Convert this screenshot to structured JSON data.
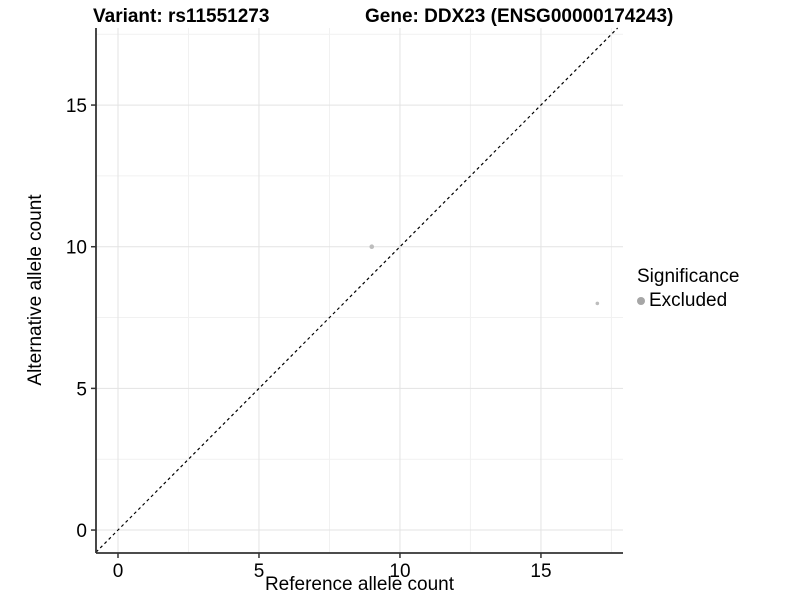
{
  "header": {
    "variant_title": "Variant: rs11551273",
    "gene_title": "Gene: DDX23 (ENSG00000174243)"
  },
  "chart_data": {
    "type": "scatter",
    "title_left": "Variant: rs11551273",
    "title_right": "Gene: DDX23 (ENSG00000174243)",
    "xlabel": "Reference allele count",
    "ylabel": "Alternative allele count",
    "xlim": [
      -0.78,
      17.91
    ],
    "ylim": [
      -0.81,
      17.72
    ],
    "x_ticks": [
      0,
      5,
      10,
      15
    ],
    "y_ticks": [
      0,
      5,
      10,
      15
    ],
    "x_minor_ticks": [
      2.5,
      7.5,
      12.5,
      17.5
    ],
    "y_minor_ticks": [
      2.5,
      7.5,
      12.5,
      17.5
    ],
    "grid": true,
    "identity_line": {
      "style": "dashed",
      "equation": "y = x",
      "color": "#000000"
    },
    "series": [
      {
        "name": "Excluded",
        "color": "#bdbdbd",
        "points": [
          {
            "x": 9,
            "y": 10,
            "r": 2.3
          },
          {
            "x": 17,
            "y": 8,
            "r": 1.8
          }
        ]
      }
    ],
    "legend": {
      "title": "Significance",
      "position": "right",
      "entries": [
        {
          "label": "Excluded",
          "color": "#a6a6a6"
        }
      ]
    },
    "colors": {
      "major_grid": "#e3e3e3",
      "minor_grid": "#f1f1f1",
      "axis_line": "#333333",
      "tick_mark": "#333333",
      "point": "#bdbdbd",
      "legend_dot": "#a6a6a6"
    }
  }
}
